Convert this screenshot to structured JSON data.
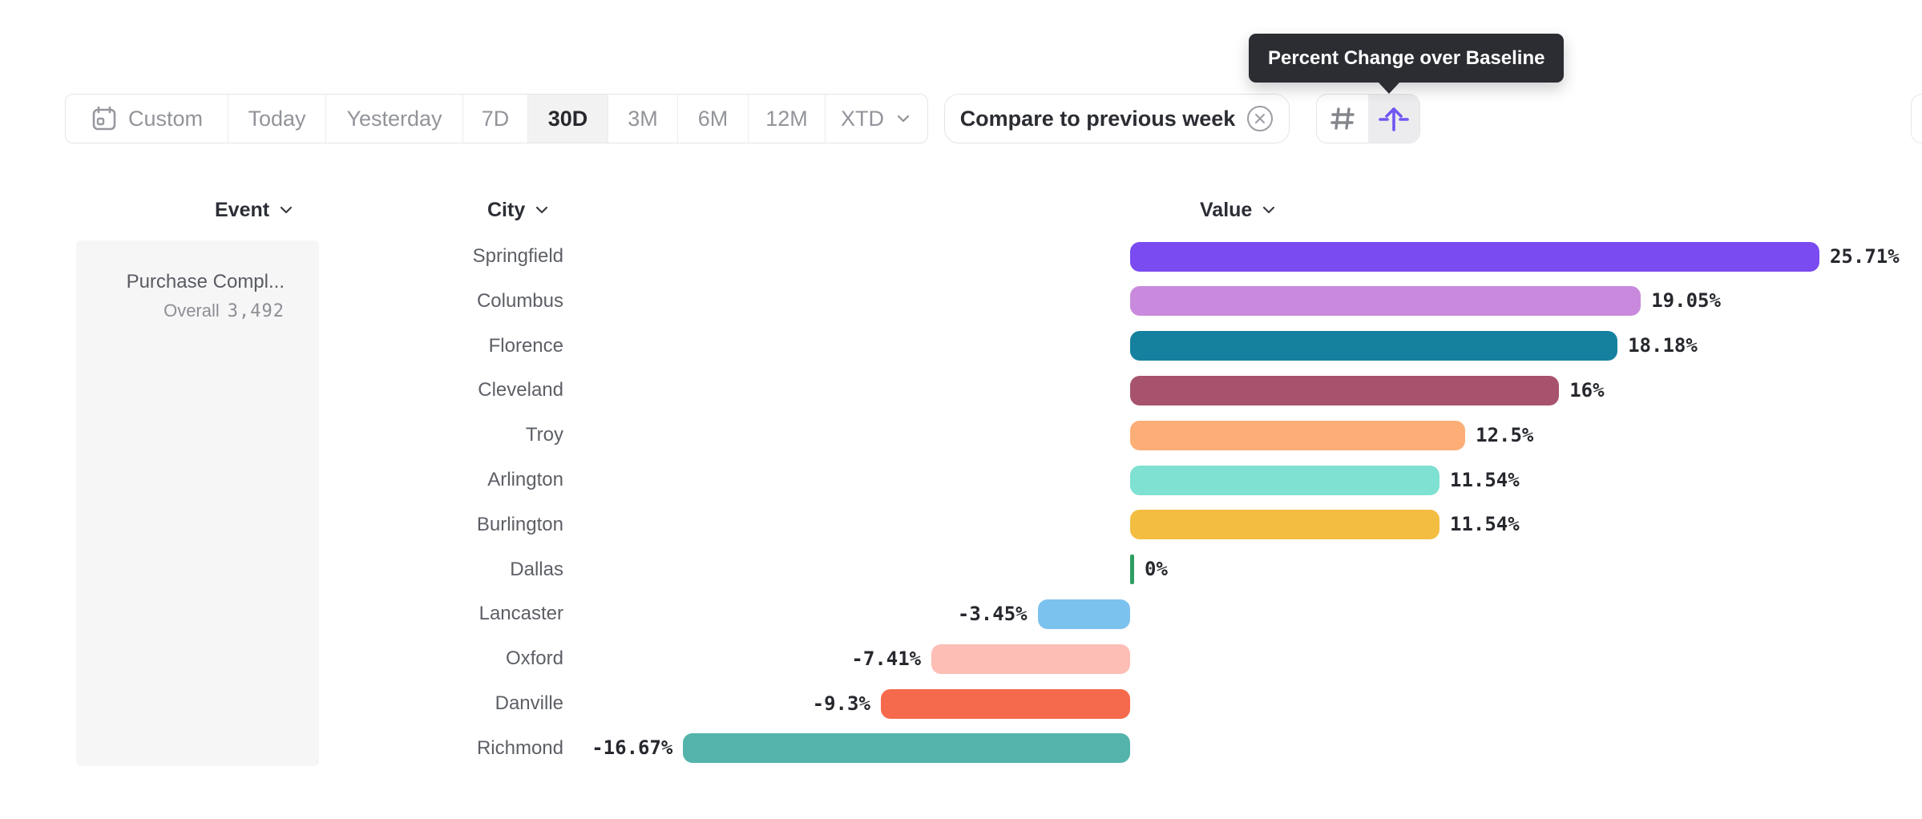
{
  "tooltip": {
    "text": "Percent Change over Baseline"
  },
  "toolbar": {
    "date_ranges": [
      {
        "label": "Custom",
        "icon": "calendar-icon",
        "selected": false
      },
      {
        "label": "Today",
        "selected": false
      },
      {
        "label": "Yesterday",
        "selected": false
      },
      {
        "label": "7D",
        "selected": false
      },
      {
        "label": "30D",
        "selected": true
      },
      {
        "label": "3M",
        "selected": false
      },
      {
        "label": "6M",
        "selected": false
      },
      {
        "label": "12M",
        "selected": false
      },
      {
        "label": "XTD",
        "has_dropdown": true,
        "selected": false
      }
    ],
    "compare_chip": {
      "label": "Compare to previous week",
      "close_icon": "circled-x-icon"
    },
    "view_toggle": [
      {
        "icon": "hash-icon",
        "selected": false,
        "color": "#84868c"
      },
      {
        "icon": "baseline-arrow-icon",
        "selected": true,
        "color": "#7056f1"
      }
    ]
  },
  "columns": {
    "event": {
      "label": "Event"
    },
    "city": {
      "label": "City"
    },
    "value": {
      "label": "Value"
    }
  },
  "event_card": {
    "name": "Purchase Compl...",
    "overall_label": "Overall",
    "overall_value": "3,492"
  },
  "chart_data": {
    "type": "bar",
    "orientation": "horizontal",
    "unit": "%",
    "series_label": "Percent Change over Baseline",
    "comparison": "Compare to previous week",
    "period": "30D",
    "baseline": 0,
    "categories": [
      "Springfield",
      "Columbus",
      "Florence",
      "Cleveland",
      "Troy",
      "Arlington",
      "Burlington",
      "Dallas",
      "Lancaster",
      "Oxford",
      "Danville",
      "Richmond"
    ],
    "values": [
      25.71,
      19.05,
      18.18,
      16,
      12.5,
      11.54,
      11.54,
      0,
      -3.45,
      -7.41,
      -9.3,
      -16.67
    ],
    "labels": [
      "25.71%",
      "19.05%",
      "18.18%",
      "16%",
      "12.5%",
      "11.54%",
      "11.54%",
      "0%",
      "-3.45%",
      "-7.41%",
      "-9.3%",
      "-16.67%"
    ],
    "colors": [
      "#7a4bf0",
      "#c98add",
      "#15819f",
      "#a8536d",
      "#fcae76",
      "#7ee1d2",
      "#f3bd41",
      "#2d9f60",
      "#7cc2ee",
      "#fcbeb5",
      "#f56a4d",
      "#54b4ab"
    ]
  }
}
